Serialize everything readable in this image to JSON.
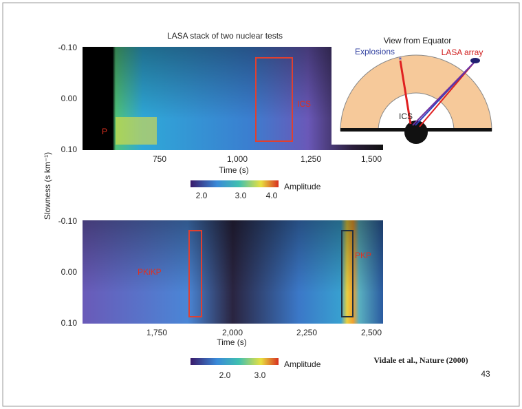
{
  "top_panel": {
    "title": "LASA stack of two nuclear tests",
    "y_ticks": [
      "-0.10",
      "0.00",
      "0.10"
    ],
    "x_ticks": [
      "750",
      "1,000",
      "1,250",
      "1,500"
    ],
    "x_label": "Time (s)",
    "phase_labels": [
      "P",
      "ICS"
    ],
    "colorbar": {
      "ticks": [
        "2.0",
        "3.0",
        "4.0"
      ],
      "label": "Amplitude"
    }
  },
  "y_label": "Slowness (s km⁻¹)",
  "inset": {
    "title": "View from Equator",
    "left_label": "Explosions",
    "right_label": "LASA array",
    "core_label": "ICS"
  },
  "bottom_panel": {
    "y_ticks": [
      "-0.10",
      "0.00",
      "0.10"
    ],
    "x_ticks": [
      "1,750",
      "2,000",
      "2,250",
      "2,500"
    ],
    "x_label": "Time (s)",
    "phase_labels": [
      "PKiKP",
      "PKP"
    ],
    "colorbar": {
      "ticks": [
        "2.0",
        "3.0"
      ],
      "label": "Amplitude"
    }
  },
  "citation": "Vidale et al., Nature (2000)",
  "slide_number": "43"
}
